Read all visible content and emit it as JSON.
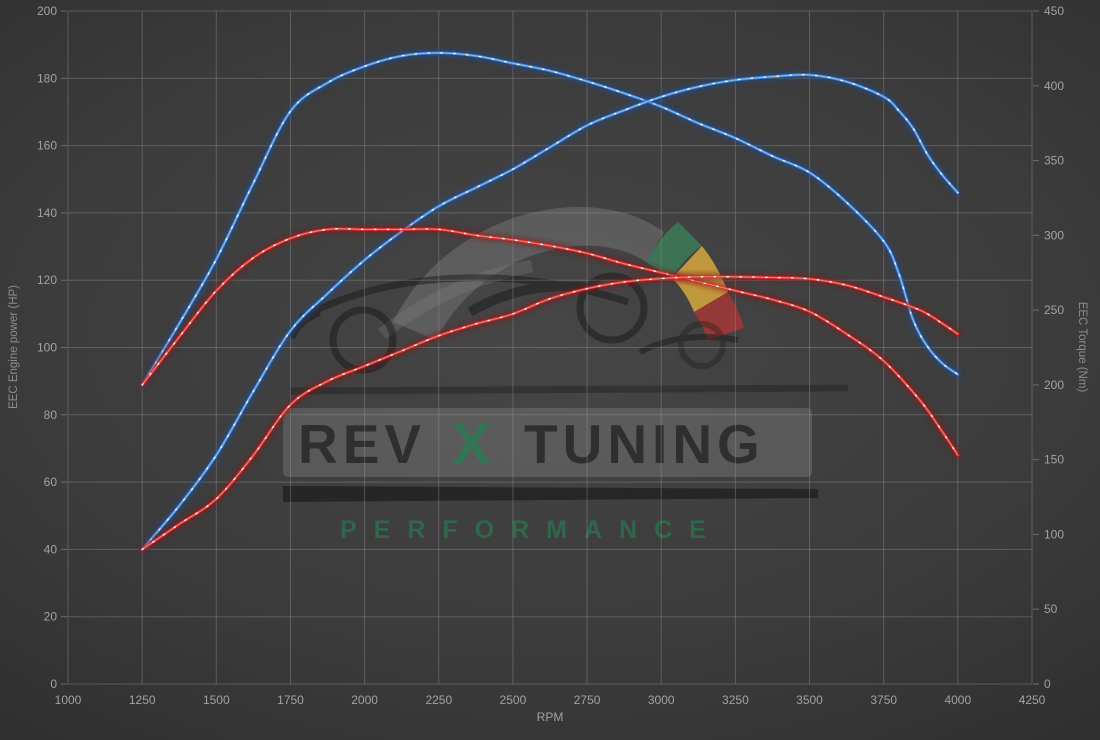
{
  "watermark": {
    "rev": "REV",
    "x": "X",
    "tuning": "TUNING",
    "performance": "PERFORMANCE"
  },
  "colors": {
    "background": "#3b3b3b",
    "grid": "#9a9a9a",
    "tick_text": "#a2a2a2",
    "axis_title_text": "#8d8d8d",
    "blue_main": "#3d85d8",
    "blue_glow": "#1d4e96",
    "blue_highlight": "#9ec7f2",
    "red_main": "#d92f2f",
    "red_glow": "#8c1616",
    "red_highlight": "#ff8f7d",
    "dot": "#ffffff",
    "wm_green": "#3c7a58",
    "wm_yellow": "#d2a53c",
    "wm_red": "#a93636",
    "wm_gray": "#909090"
  },
  "chart_data": {
    "type": "line",
    "title": "",
    "xlabel": "RPM",
    "ylabel_left": "EEC Engine power (HP)",
    "ylabel_right": "EEC Torque (Nm)",
    "x_range": [
      1000,
      4250
    ],
    "y_left_range": [
      0,
      200
    ],
    "y_right_range": [
      0,
      450
    ],
    "grid": true,
    "legend": "none",
    "x_ticks": [
      1000,
      1250,
      1500,
      1750,
      2000,
      2250,
      2500,
      2750,
      3000,
      3250,
      3500,
      3750,
      4000,
      4250
    ],
    "y_left_ticks": [
      0,
      20,
      40,
      60,
      80,
      100,
      120,
      140,
      160,
      180,
      200
    ],
    "y_right_ticks": [
      0,
      50,
      100,
      150,
      200,
      250,
      300,
      350,
      400,
      450
    ],
    "series": [
      {
        "name": "blue_torque",
        "axis": "right",
        "units": "Nm",
        "color_role": "blue",
        "x": [
          1250,
          1375,
          1500,
          1625,
          1750,
          1875,
          2000,
          2125,
          2250,
          2375,
          2500,
          2625,
          2750,
          2875,
          3000,
          3125,
          3250,
          3375,
          3500,
          3625,
          3750,
          3800,
          3850,
          3900,
          3950,
          4000
        ],
        "values": [
          200,
          241,
          284,
          335,
          383,
          402,
          413,
          420,
          422,
          420,
          415,
          410,
          403,
          395,
          386,
          375,
          365,
          353,
          342,
          322,
          296,
          275,
          243,
          225,
          214,
          207
        ]
      },
      {
        "name": "blue_power",
        "axis": "left",
        "units": "HP",
        "color_role": "blue",
        "x": [
          1250,
          1375,
          1500,
          1625,
          1750,
          1875,
          2000,
          2125,
          2250,
          2375,
          2500,
          2625,
          2750,
          2875,
          3000,
          3125,
          3250,
          3375,
          3500,
          3625,
          3750,
          3800,
          3850,
          3900,
          3950,
          4000
        ],
        "values": [
          40,
          53,
          68,
          87,
          105,
          116,
          126,
          134.5,
          142,
          147.5,
          153,
          159.5,
          166,
          170.5,
          174.5,
          177.5,
          179.5,
          180.5,
          181,
          179,
          174.5,
          170.5,
          165,
          157,
          151,
          146
        ]
      },
      {
        "name": "red_torque",
        "axis": "right",
        "units": "Nm",
        "color_role": "red",
        "x": [
          1250,
          1375,
          1500,
          1625,
          1750,
          1875,
          2000,
          2125,
          2250,
          2375,
          2500,
          2625,
          2750,
          2875,
          3000,
          3125,
          3250,
          3375,
          3500,
          3625,
          3750,
          3875,
          3950,
          4000
        ],
        "values": [
          200,
          232,
          263,
          285,
          298,
          304,
          304,
          304,
          304,
          300,
          297,
          293,
          288,
          281,
          275,
          269,
          263,
          257,
          249,
          234,
          216,
          189,
          168,
          153
        ]
      },
      {
        "name": "red_power",
        "axis": "left",
        "units": "HP",
        "color_role": "red",
        "x": [
          1250,
          1375,
          1500,
          1625,
          1750,
          1875,
          2000,
          2125,
          2250,
          2375,
          2500,
          2625,
          2750,
          2875,
          3000,
          3125,
          3250,
          3375,
          3500,
          3625,
          3750,
          3875,
          3950,
          4000
        ],
        "values": [
          40,
          47.5,
          55,
          68,
          83,
          90,
          94.5,
          99,
          103.5,
          107,
          110,
          114.5,
          117.5,
          119.5,
          120.5,
          121,
          121,
          120.8,
          120.4,
          118.5,
          115,
          111,
          107,
          104
        ]
      }
    ]
  }
}
